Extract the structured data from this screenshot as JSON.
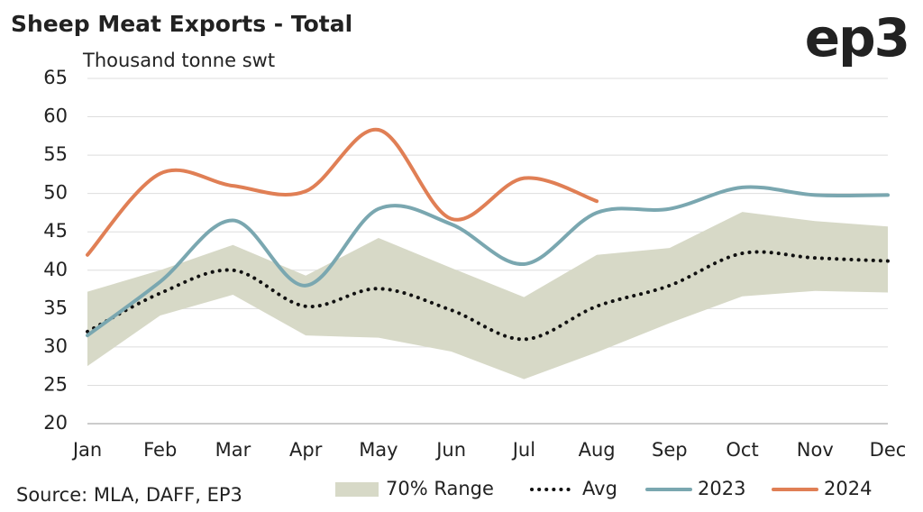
{
  "chart_data": {
    "type": "line",
    "title": "Sheep Meat Exports - Total",
    "logo": "ep3",
    "y_label": "Thousand tonne swt",
    "source": "Source: MLA, DAFF, EP3",
    "categories": [
      "Jan",
      "Feb",
      "Mar",
      "Apr",
      "May",
      "Jun",
      "Jul",
      "Aug",
      "Sep",
      "Oct",
      "Nov",
      "Dec"
    ],
    "ylim": [
      20,
      65
    ],
    "yticks": [
      20,
      25,
      30,
      35,
      40,
      45,
      50,
      55,
      60,
      65
    ],
    "grid": true,
    "legend": "bottom",
    "series": [
      {
        "name": "70% Range",
        "kind": "range",
        "color": "#d7d9c7",
        "low": [
          27.5,
          34.1,
          36.8,
          31.5,
          31.2,
          29.4,
          25.8,
          29.3,
          33.1,
          36.6,
          37.3,
          37.1
        ],
        "high": [
          37.2,
          40,
          43.3,
          39.3,
          44.2,
          40.3,
          36.5,
          42,
          42.9,
          47.6,
          46.4,
          45.7
        ]
      },
      {
        "name": "Avg",
        "kind": "dotted",
        "color": "#111111",
        "values": [
          32,
          37,
          40,
          35.3,
          37.6,
          34.8,
          31,
          35.3,
          38,
          42.2,
          41.6,
          41.2
        ]
      },
      {
        "name": "2023",
        "kind": "solid",
        "color": "#7aa7b0",
        "values": [
          31.5,
          38.5,
          46.5,
          38,
          48,
          46,
          40.8,
          47.5,
          48,
          50.8,
          49.8,
          49.8
        ]
      },
      {
        "name": "2024",
        "kind": "solid",
        "color": "#e07f55",
        "values": [
          42,
          52.6,
          51,
          50.3,
          58.3,
          46.7,
          52,
          49,
          null,
          null,
          null,
          null
        ]
      }
    ]
  }
}
